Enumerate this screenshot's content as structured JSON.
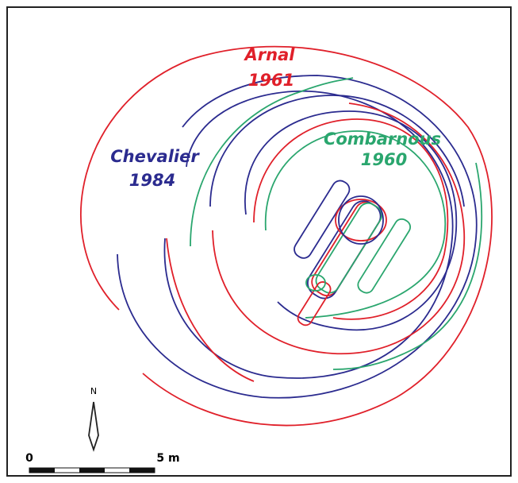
{
  "labels": [
    {
      "name": "Arnal",
      "year": "1961"
    },
    {
      "name": "Chevalier",
      "year": "1984"
    },
    {
      "name": "Combarnous",
      "year": "1960"
    }
  ],
  "north": "N",
  "scale": {
    "start": "0",
    "end": "5 m"
  }
}
